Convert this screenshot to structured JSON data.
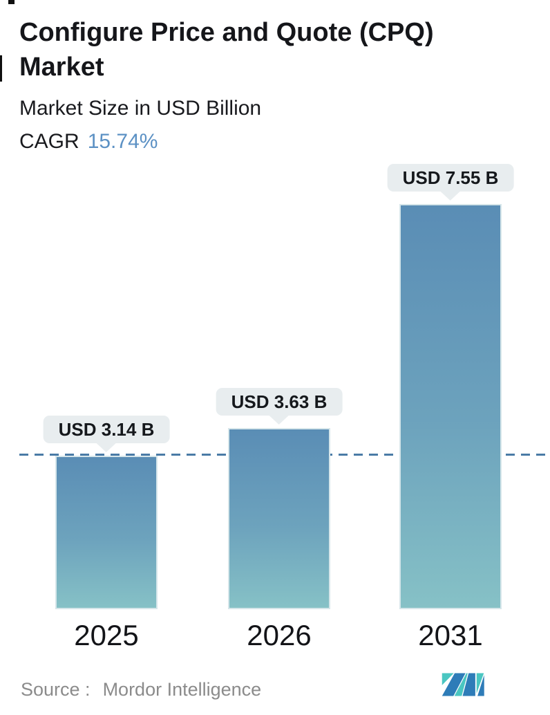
{
  "header": {
    "title": "Configure Price and Quote (CPQ) Market",
    "subtitle": "Market Size in USD Billion",
    "cagr_label": "CAGR",
    "cagr_value": "15.74%"
  },
  "footer": {
    "source_label": "Source :",
    "source_value": "Mordor Intelligence"
  },
  "chart_data": {
    "type": "bar",
    "title": "Configure Price and Quote (CPQ) Market",
    "subtitle": "Market Size in USD Billion",
    "cagr": "15.74%",
    "unit": "USD Billion",
    "categories": [
      "2025",
      "2026",
      "2031"
    ],
    "values": [
      3.14,
      3.63,
      7.55
    ],
    "bar_labels": [
      "USD 3.14 B",
      "USD 3.63 B",
      "USD 7.55 B"
    ],
    "ylim": [
      0.45,
      7.55
    ],
    "grid": false,
    "legend": false,
    "reference_line": {
      "value": 3.14,
      "style": "dashed",
      "color": "#4a7ba6"
    },
    "source": "Mordor Intelligence",
    "colors": {
      "bar_gradient_top": "#5a8db5",
      "bar_gradient_bottom": "#86c1c6",
      "bar_border": "#d6e6ea",
      "label_bubble_bg": "#e8edef",
      "cagr_accent": "#5c91c4",
      "reference_line": "#4a7ba6",
      "text_dark": "#15161a",
      "source_gray": "#8b8b8b",
      "logo_blue": "#2e7cb8",
      "logo_teal": "#4ac6c1"
    }
  }
}
